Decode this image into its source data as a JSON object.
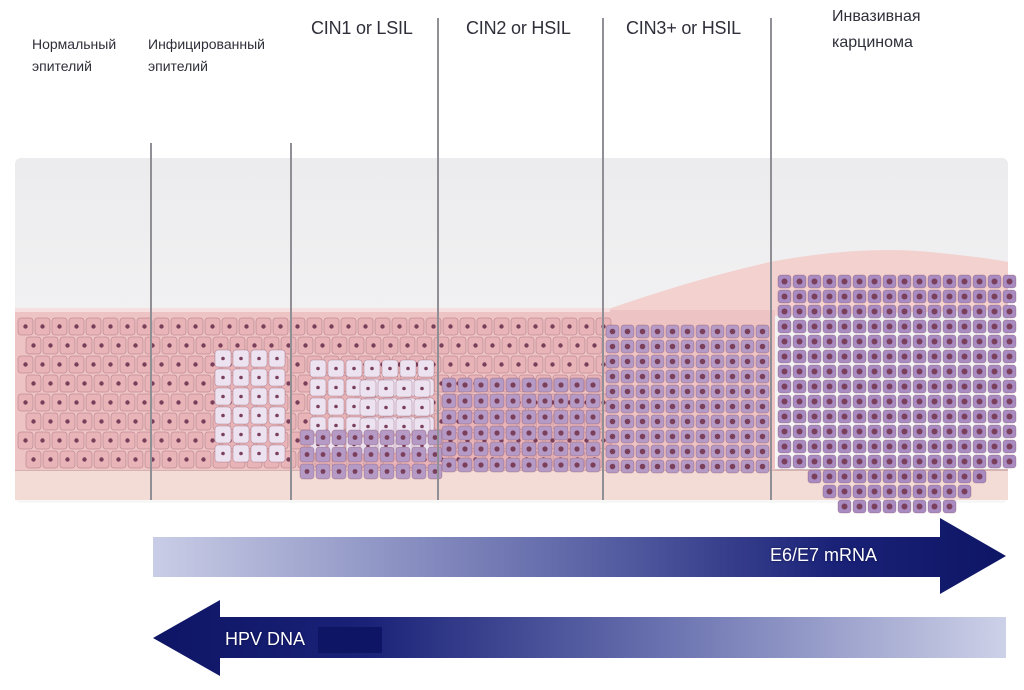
{
  "stages": [
    {
      "label": "Нормальный эпителий"
    },
    {
      "label": "Инфицированный эпителий"
    },
    {
      "label": "CIN1 or LSIL"
    },
    {
      "label": "CIN2 or HSIL"
    },
    {
      "label": "CIN3+ or HSIL"
    },
    {
      "label": "Инвазивная карцинома"
    }
  ],
  "arrows": {
    "right": {
      "label": "E6/E7 mRNA",
      "color": "#0e1565"
    },
    "left": {
      "label": "HPV DNA",
      "color": "#0e1565"
    }
  },
  "colors": {
    "normal_cell": "#e8b4b8",
    "infected_cell": "#ede2f0",
    "dysplastic_cell": "#b49ac4",
    "carcinoma_cell": "#a88bc0",
    "nucleus": "#7a3f5a",
    "basement": "#f4dcd6"
  }
}
